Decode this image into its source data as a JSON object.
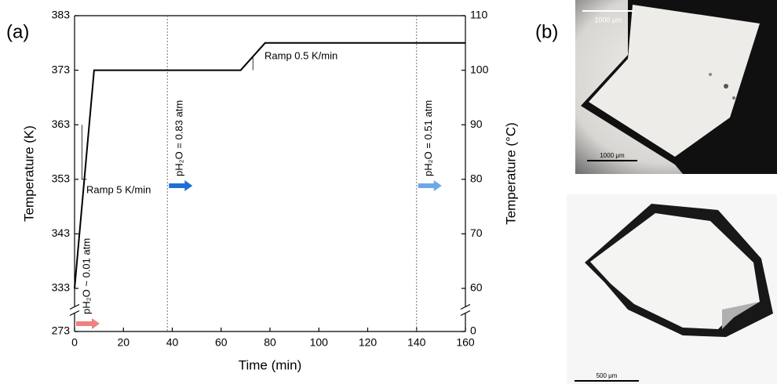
{
  "chart_data": {
    "type": "line",
    "panel_label": "(a)",
    "x_label": "Time (min)",
    "y_label": "Temperature (K)",
    "y2_label": "Temperature (°C)",
    "x": [
      0,
      8,
      68,
      78,
      160
    ],
    "values": [
      333,
      373,
      373,
      378,
      378
    ],
    "color": "#000000",
    "xlim": [
      0,
      160
    ],
    "xticks": [
      0,
      20,
      40,
      60,
      80,
      100,
      120,
      140,
      160
    ],
    "ylim": [
      273,
      383
    ],
    "ybreak": [
      273,
      333
    ],
    "yticks": [
      273,
      333,
      343,
      353,
      363,
      373,
      383
    ],
    "y2lim": [
      0,
      110
    ],
    "y2break": [
      0,
      60
    ],
    "y2ticks": [
      0,
      60,
      70,
      80,
      90,
      100,
      110
    ],
    "ramp_labels": [
      "Ramp 5 K/min",
      "Ramp 0.5 K/min"
    ],
    "annotations": [
      {
        "text": "pH₂O ~ 0.01 atm",
        "x": 0,
        "color": "#f08080"
      },
      {
        "text": "pH₂O = 0.83 atm",
        "x": 38,
        "color": "#1f6fd1"
      },
      {
        "text": "pH₂O = 0.51 atm",
        "x": 140,
        "color": "#6aa8e8"
      }
    ]
  },
  "images": {
    "panel_label": "(b)",
    "top_scale_white": "1000 μm",
    "top_scale": "1000 μm",
    "bottom_scale": "500 μm"
  }
}
